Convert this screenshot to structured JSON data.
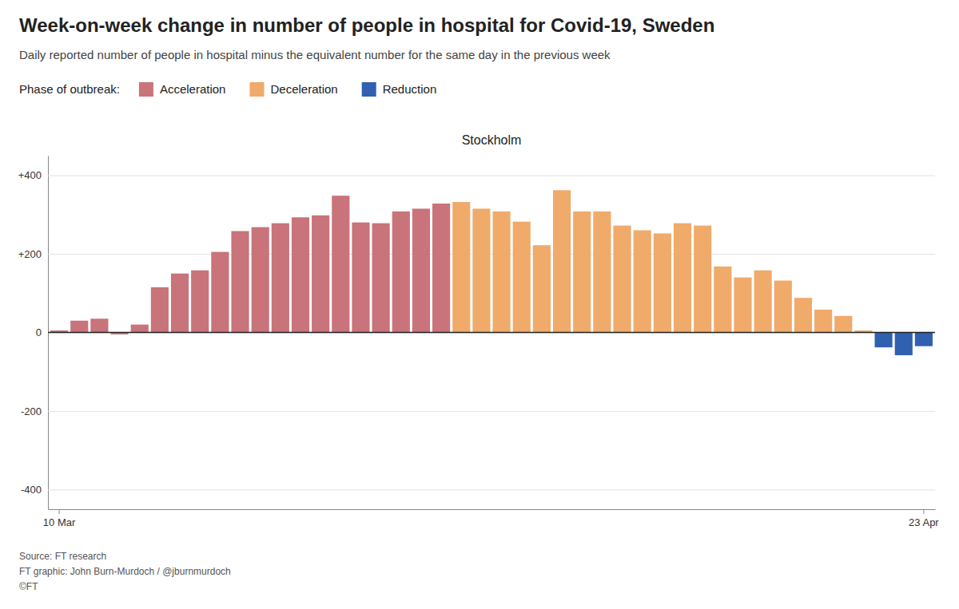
{
  "chart_data": {
    "type": "bar",
    "title": "Week-on-week change in number of people in hospital for Covid-19, Sweden",
    "subtitle": "Daily reported number of people in hospital minus the equivalent number for the same day in the previous week",
    "panel_title": "Stockholm",
    "legend_title": "Phase of outbreak:",
    "annotations": [
      "Source: FT research",
      "FT graphic: John Burn-Murdoch / @jburnmurdoch",
      "©FT"
    ],
    "categories": [
      "10 Mar",
      null,
      null,
      null,
      null,
      null,
      null,
      null,
      null,
      null,
      null,
      null,
      null,
      null,
      null,
      null,
      null,
      null,
      null,
      null,
      null,
      null,
      null,
      null,
      null,
      null,
      null,
      null,
      null,
      null,
      null,
      null,
      null,
      null,
      null,
      null,
      null,
      null,
      null,
      null,
      null,
      null,
      null,
      "23 Apr"
    ],
    "series": [
      {
        "name": "Acceleration",
        "color": "#c9737a",
        "values": [
          5,
          30,
          35,
          -5,
          20,
          115,
          150,
          158,
          205,
          258,
          268,
          278,
          293,
          298,
          348,
          280,
          278,
          308,
          315,
          328,
          null,
          null,
          null,
          null,
          null,
          null,
          null,
          null,
          null,
          null,
          null,
          null,
          null,
          null,
          null,
          null,
          null,
          null,
          null,
          null,
          null,
          null,
          null,
          null
        ]
      },
      {
        "name": "Deceleration",
        "color": "#f0aa6a",
        "values": [
          null,
          null,
          null,
          null,
          null,
          null,
          null,
          null,
          null,
          null,
          null,
          null,
          null,
          null,
          null,
          null,
          null,
          null,
          null,
          null,
          332,
          315,
          308,
          282,
          222,
          362,
          308,
          308,
          272,
          260,
          252,
          278,
          272,
          168,
          140,
          158,
          132,
          88,
          58,
          42,
          5,
          null,
          null,
          null
        ]
      },
      {
        "name": "Reduction",
        "color": "#3060b0",
        "values": [
          null,
          null,
          null,
          null,
          null,
          null,
          null,
          null,
          null,
          null,
          null,
          null,
          null,
          null,
          null,
          null,
          null,
          null,
          null,
          null,
          null,
          null,
          null,
          null,
          null,
          null,
          null,
          null,
          null,
          null,
          null,
          null,
          null,
          null,
          null,
          null,
          null,
          null,
          null,
          null,
          null,
          -38,
          -58,
          -35
        ]
      }
    ],
    "stacked": true,
    "ylim": [
      -450,
      450
    ],
    "yticks": [
      -400,
      -200,
      0,
      {
        "value": 200,
        "label": "+200"
      },
      {
        "value": 400,
        "label": "+400"
      }
    ],
    "grid": true,
    "legend": "top"
  }
}
